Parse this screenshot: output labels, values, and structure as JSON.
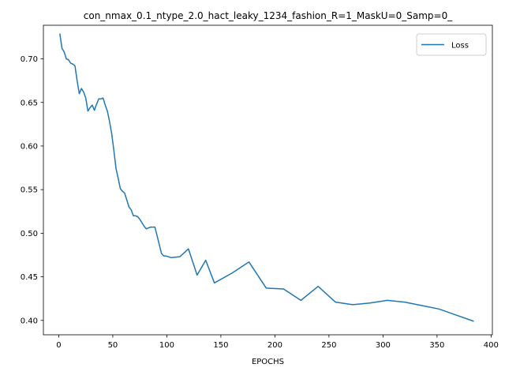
{
  "chart_data": {
    "type": "line",
    "title": "con_nmax_0.1_ntype_2.0_hact_leaky_1234_fashion_R=1_MaskU=0_Samp=0_",
    "xlabel": "EPOCHS",
    "ylabel": "",
    "xlim": [
      -14.2,
      401.2
    ],
    "ylim": [
      0.3835,
      0.7385
    ],
    "xticks": [
      0,
      50,
      100,
      150,
      200,
      250,
      300,
      350,
      400
    ],
    "yticks": [
      0.4,
      0.45,
      0.5,
      0.55,
      0.6,
      0.65,
      0.7
    ],
    "grid": false,
    "legend_position": "top-right",
    "colors": {
      "series": "#1f77b4",
      "axes": "#000000",
      "legend_border": "#cccccc"
    },
    "series": [
      {
        "name": "Loss",
        "x": [
          1,
          3,
          5,
          7,
          9,
          11,
          13,
          15,
          17,
          19,
          21,
          23,
          25,
          27,
          29,
          31,
          33,
          35,
          37,
          39,
          41,
          43,
          45,
          47,
          49,
          51,
          53,
          55,
          57,
          59,
          61,
          63,
          65,
          67,
          69,
          71,
          73,
          75,
          77,
          79,
          81,
          83,
          85,
          87,
          89,
          91,
          93,
          95,
          97,
          99,
          104,
          112,
          120,
          128,
          136,
          144,
          160,
          176,
          192,
          208,
          224,
          240,
          256,
          272,
          288,
          304,
          320,
          336,
          352,
          368,
          384
        ],
        "values": [
          0.729,
          0.712,
          0.708,
          0.7,
          0.699,
          0.695,
          0.694,
          0.692,
          0.675,
          0.66,
          0.666,
          0.662,
          0.655,
          0.64,
          0.644,
          0.647,
          0.641,
          0.648,
          0.654,
          0.654,
          0.655,
          0.647,
          0.64,
          0.628,
          0.614,
          0.595,
          0.574,
          0.563,
          0.551,
          0.548,
          0.546,
          0.538,
          0.53,
          0.527,
          0.52,
          0.52,
          0.519,
          0.516,
          0.512,
          0.508,
          0.505,
          0.506,
          0.507,
          0.507,
          0.507,
          0.497,
          0.487,
          0.477,
          0.474,
          0.474,
          0.472,
          0.473,
          0.482,
          0.452,
          0.469,
          0.443,
          0.454,
          0.467,
          0.437,
          0.436,
          0.423,
          0.439,
          0.421,
          0.418,
          0.42,
          0.423,
          0.421,
          0.417,
          0.413,
          0.406,
          0.399
        ]
      }
    ]
  }
}
